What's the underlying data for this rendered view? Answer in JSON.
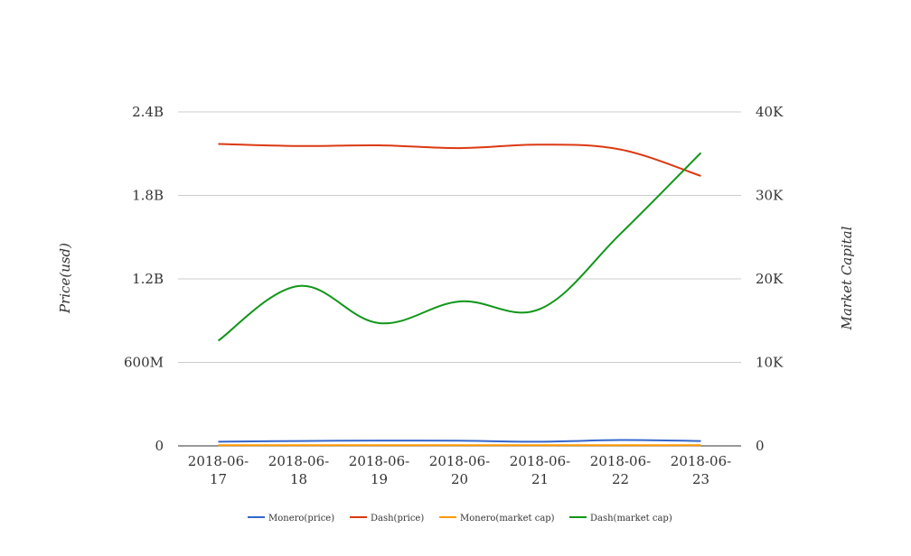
{
  "chart_data": {
    "type": "line",
    "categories": [
      "2018-06-17",
      "2018-06-18",
      "2018-06-19",
      "2018-06-20",
      "2018-06-21",
      "2018-06-22",
      "2018-06-23"
    ],
    "category_lines": [
      [
        "2018-06-",
        "17"
      ],
      [
        "2018-06-",
        "18"
      ],
      [
        "2018-06-",
        "19"
      ],
      [
        "2018-06-",
        "20"
      ],
      [
        "2018-06-",
        "21"
      ],
      [
        "2018-06-",
        "22"
      ],
      [
        "2018-06-",
        "23"
      ]
    ],
    "ylabel": "Price(usd)",
    "y2label": "Market Capital",
    "ylim": [
      0,
      2400000000
    ],
    "y2lim": [
      0,
      40000
    ],
    "yticks": [
      {
        "v": 0,
        "label": "0"
      },
      {
        "v": 600000000,
        "label": "600M"
      },
      {
        "v": 1200000000,
        "label": "1.2B"
      },
      {
        "v": 1800000000,
        "label": "1.8B"
      },
      {
        "v": 2400000000,
        "label": "2.4B"
      }
    ],
    "y2ticks": [
      {
        "v": 0,
        "label": "0"
      },
      {
        "v": 10000,
        "label": "10K"
      },
      {
        "v": 20000,
        "label": "20K"
      },
      {
        "v": 30000,
        "label": "30K"
      },
      {
        "v": 40000,
        "label": "40K"
      }
    ],
    "grid": true,
    "legend_position": "bottom",
    "series": [
      {
        "name": "Monero(price)",
        "axis": "left",
        "color": "#3366cc",
        "values": [
          30000000,
          35000000,
          38000000,
          37000000,
          30000000,
          42000000,
          35000000
        ]
      },
      {
        "name": "Dash(price)",
        "axis": "left",
        "color": "#dc3912",
        "values": [
          2170000000,
          2155000000,
          2160000000,
          2140000000,
          2165000000,
          2130000000,
          1940000000
        ]
      },
      {
        "name": "Monero(market cap)",
        "axis": "right",
        "color": "#ff9900",
        "values": [
          80,
          80,
          80,
          80,
          80,
          80,
          80
        ]
      },
      {
        "name": "Dash(market cap)",
        "axis": "right",
        "color": "#109618",
        "values": [
          12600,
          19150,
          14700,
          17300,
          16400,
          25400,
          35100
        ]
      }
    ]
  }
}
